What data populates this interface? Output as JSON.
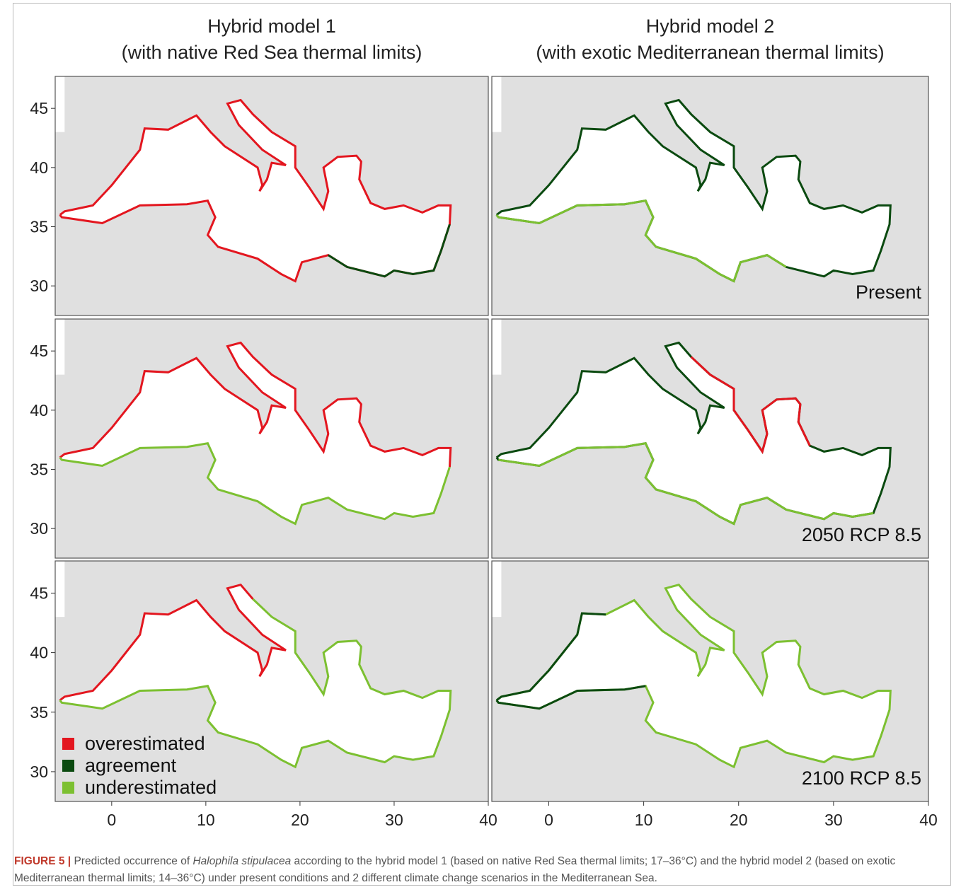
{
  "columns": [
    {
      "title_line1": "Hybrid model 1",
      "title_line2": "(with native Red Sea thermal limits)"
    },
    {
      "title_line1": "Hybrid model 2",
      "title_line2": "(with exotic Mediterranean thermal limits)"
    }
  ],
  "rows": [
    {
      "label": "Present"
    },
    {
      "label": "2050 RCP 8.5"
    },
    {
      "label": "2100 RCP 8.5"
    }
  ],
  "axes": {
    "xlim": [
      -6,
      40
    ],
    "ylim": [
      27.5,
      47.7
    ],
    "xticks": [
      0,
      10,
      20,
      30,
      40
    ],
    "yticks": [
      30,
      35,
      40,
      45
    ]
  },
  "legend": [
    {
      "label": "overestimated",
      "color": "#e3161f"
    },
    {
      "label": "agreement",
      "color": "#0b4a10"
    },
    {
      "label": "underestimated",
      "color": "#7cc031"
    }
  ],
  "caption": {
    "label": "FIGURE 5 |",
    "text_before": "Predicted occurrence of",
    "species": "Halophila stipulacea",
    "text_after": "according to the hybrid model 1 (based on native Red Sea thermal limits; 17–36°C) and the hybrid model 2 (based on exotic Mediterranean thermal limits; 14–36°C) under present conditions and 2 different climate change scenarios in the Mediterranean Sea."
  }
}
